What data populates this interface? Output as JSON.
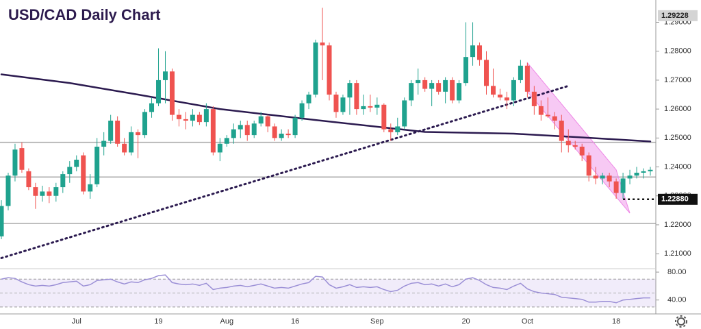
{
  "chart_data": [
    {
      "type": "candlestick",
      "title": "USD/CAD Daily Chart",
      "categories": [
        null,
        null,
        null,
        null,
        null,
        null,
        null,
        null,
        null,
        null,
        null,
        "Jul",
        null,
        null,
        null,
        null,
        null,
        null,
        null,
        null,
        null,
        null,
        null,
        "19",
        null,
        null,
        null,
        null,
        null,
        null,
        null,
        null,
        null,
        "Aug",
        null,
        null,
        null,
        null,
        null,
        null,
        null,
        null,
        null,
        "16",
        null,
        null,
        null,
        null,
        null,
        null,
        null,
        null,
        null,
        null,
        null,
        "Sep",
        null,
        null,
        null,
        null,
        null,
        null,
        null,
        null,
        null,
        null,
        null,
        null,
        "20",
        null,
        null,
        null,
        null,
        null,
        null,
        null,
        null,
        "Oct",
        null,
        null,
        null,
        null,
        null,
        null,
        null,
        null,
        null,
        null,
        null,
        null,
        "18",
        null,
        null,
        null,
        null,
        null
      ],
      "open": [
        1.216,
        1.2265,
        1.237,
        1.2465,
        1.2385,
        1.233,
        1.23,
        1.2315,
        1.23,
        1.233,
        1.2375,
        1.24,
        1.244,
        1.2315,
        1.234,
        1.247,
        1.249,
        1.256,
        1.248,
        1.245,
        1.252,
        1.251,
        1.259,
        1.262,
        1.27,
        1.273,
        1.258,
        1.2565,
        1.256,
        1.258,
        1.2555,
        1.26,
        1.245,
        1.248,
        1.25,
        1.253,
        1.2545,
        1.251,
        1.255,
        1.2575,
        1.254,
        1.25,
        1.2515,
        1.251,
        1.257,
        1.262,
        1.265,
        1.283,
        1.282,
        1.265,
        1.259,
        1.264,
        1.269,
        1.26,
        1.261,
        1.2605,
        1.2615,
        1.253,
        1.252,
        1.254,
        1.263,
        1.269,
        1.27,
        1.267,
        1.269,
        1.266,
        1.27,
        1.263,
        1.269,
        1.278,
        1.282,
        1.277,
        1.268,
        1.265,
        1.264,
        1.263,
        1.27,
        1.275,
        1.266,
        1.261,
        1.258,
        1.2575,
        1.256,
        1.249,
        1.2475,
        1.247,
        1.244,
        1.237,
        1.236,
        1.237,
        1.235,
        1.231,
        1.236,
        1.237,
        1.238,
        1.2385
      ],
      "high": [
        1.2285,
        1.238,
        1.248,
        1.2485,
        1.2395,
        1.2345,
        1.2335,
        1.233,
        1.2345,
        1.2385,
        1.242,
        1.244,
        1.245,
        1.2375,
        1.25,
        1.252,
        1.258,
        1.2575,
        1.25,
        1.254,
        1.253,
        1.26,
        1.264,
        1.281,
        1.28,
        1.274,
        1.26,
        1.259,
        1.26,
        1.259,
        1.262,
        1.261,
        1.25,
        1.251,
        1.255,
        1.256,
        1.256,
        1.256,
        1.259,
        1.258,
        1.255,
        1.253,
        1.253,
        1.258,
        1.263,
        1.266,
        1.284,
        1.295,
        1.283,
        1.266,
        1.265,
        1.27,
        1.27,
        1.265,
        1.265,
        1.264,
        1.262,
        1.255,
        1.257,
        1.264,
        1.27,
        1.274,
        1.271,
        1.27,
        1.27,
        1.271,
        1.271,
        1.27,
        1.29,
        1.29,
        1.283,
        1.28,
        1.274,
        1.267,
        1.266,
        1.271,
        1.277,
        1.276,
        1.268,
        1.263,
        1.264,
        1.259,
        1.258,
        1.253,
        1.249,
        1.248,
        1.245,
        1.24,
        1.238,
        1.238,
        1.236,
        1.238,
        1.239,
        1.24,
        1.2395,
        1.24
      ],
      "low": [
        1.215,
        1.225,
        1.235,
        1.238,
        1.232,
        1.2255,
        1.228,
        1.2275,
        1.228,
        1.231,
        1.2345,
        1.2385,
        1.2305,
        1.229,
        1.233,
        1.244,
        1.248,
        1.247,
        1.244,
        1.244,
        1.243,
        1.25,
        1.257,
        1.261,
        1.262,
        1.256,
        1.254,
        1.253,
        1.254,
        1.2545,
        1.254,
        1.244,
        1.242,
        1.247,
        1.248,
        1.25,
        1.249,
        1.25,
        1.254,
        1.252,
        1.249,
        1.249,
        1.25,
        1.25,
        1.256,
        1.26,
        1.264,
        1.27,
        1.263,
        1.257,
        1.258,
        1.258,
        1.258,
        1.258,
        1.259,
        1.258,
        1.252,
        1.249,
        1.251,
        1.253,
        1.261,
        1.265,
        1.266,
        1.261,
        1.265,
        1.262,
        1.262,
        1.262,
        1.268,
        1.275,
        1.275,
        1.265,
        1.264,
        1.263,
        1.26,
        1.261,
        1.269,
        1.264,
        1.258,
        1.256,
        1.257,
        1.253,
        1.245,
        1.245,
        1.246,
        1.242,
        1.235,
        1.234,
        1.234,
        1.233,
        1.229,
        1.229,
        1.234,
        1.236,
        1.236,
        1.237
      ],
      "close": [
        1.2265,
        1.237,
        1.246,
        1.239,
        1.233,
        1.23,
        1.2315,
        1.23,
        1.233,
        1.2375,
        1.24,
        1.2425,
        1.2315,
        1.234,
        1.247,
        1.249,
        1.256,
        1.248,
        1.245,
        1.252,
        1.251,
        1.259,
        1.262,
        1.27,
        1.273,
        1.258,
        1.2565,
        1.256,
        1.258,
        1.2555,
        1.26,
        1.245,
        1.248,
        1.25,
        1.253,
        1.2545,
        1.251,
        1.255,
        1.2575,
        1.254,
        1.25,
        1.2515,
        1.251,
        1.257,
        1.262,
        1.265,
        1.283,
        1.282,
        1.265,
        1.259,
        1.264,
        1.269,
        1.26,
        1.261,
        1.2605,
        1.2615,
        1.253,
        1.252,
        1.254,
        1.263,
        1.269,
        1.27,
        1.267,
        1.269,
        1.266,
        1.27,
        1.263,
        1.269,
        1.278,
        1.282,
        1.277,
        1.268,
        1.265,
        1.264,
        1.263,
        1.27,
        1.275,
        1.266,
        1.261,
        1.258,
        1.2575,
        1.256,
        1.249,
        1.2475,
        1.247,
        1.244,
        1.237,
        1.236,
        1.237,
        1.235,
        1.231,
        1.236,
        1.237,
        1.238,
        1.2385,
        1.239
      ],
      "up_color": "#1fa28e",
      "down_color": "#ef5350",
      "ylim": [
        1.2053,
        1.2977
      ],
      "yticks": [
        {
          "value": 1.29,
          "label": "1.29000"
        },
        {
          "value": 1.28,
          "label": "1.28000"
        },
        {
          "value": 1.27,
          "label": "1.27000"
        },
        {
          "value": 1.26,
          "label": "1.26000"
        },
        {
          "value": 1.25,
          "label": "1.25000"
        },
        {
          "value": 1.24,
          "label": "1.24000"
        },
        {
          "value": 1.23,
          "label": "1.23000"
        },
        {
          "value": 1.22,
          "label": "1.22000"
        },
        {
          "value": 1.21,
          "label": "1.21000"
        }
      ],
      "lines": [
        {
          "color": "#2b1a4f",
          "style": "solid",
          "x": [
            0,
            10,
            20,
            32,
            46,
            62,
            75,
            85,
            95
          ],
          "values": [
            1.272,
            1.269,
            1.265,
            1.26,
            1.2562,
            1.2521,
            1.2515,
            1.2502,
            1.2488
          ]
        },
        {
          "color": "#2b1a4f",
          "style": "dotted",
          "x": [
            0,
            83
          ],
          "values": [
            1.2085,
            1.268
          ]
        }
      ],
      "levels": [
        1.2485,
        1.2365,
        1.2205
      ],
      "channel": {
        "color": "#ee88e6",
        "x": [
          77,
          90,
          92,
          77
        ],
        "values": [
          1.276,
          1.239,
          1.224,
          1.266
        ]
      },
      "price_labels": [
        {
          "value": 1.29228,
          "label": "1.29228",
          "color": "#d4d4d4"
        },
        {
          "value": 1.2288,
          "label": "1.22880",
          "color": "#111111"
        }
      ]
    },
    {
      "type": "line",
      "color": "#9b8fd6",
      "values": [
        70,
        72,
        71,
        66,
        62,
        60,
        61,
        60,
        62,
        65,
        66,
        67,
        60,
        62,
        68,
        69,
        70,
        66,
        63,
        66,
        65,
        69,
        71,
        75,
        76,
        65,
        63,
        62,
        63,
        61,
        64,
        55,
        57,
        58,
        60,
        61,
        59,
        61,
        63,
        60,
        57,
        58,
        57,
        60,
        63,
        65,
        74,
        73,
        62,
        57,
        59,
        62,
        58,
        59,
        58,
        59,
        55,
        52,
        54,
        60,
        64,
        65,
        62,
        63,
        60,
        63,
        59,
        62,
        70,
        72,
        68,
        62,
        58,
        57,
        55,
        60,
        64,
        56,
        52,
        50,
        49,
        48,
        44,
        43,
        42,
        41,
        37,
        37,
        38,
        38,
        36,
        40,
        41,
        42,
        43,
        43
      ],
      "ylim": [
        23,
        82
      ],
      "yticks": [
        {
          "value": 80,
          "label": "80.00"
        },
        {
          "value": 40,
          "label": "40.00"
        }
      ],
      "band": [
        30,
        70
      ],
      "midline": 50
    }
  ]
}
